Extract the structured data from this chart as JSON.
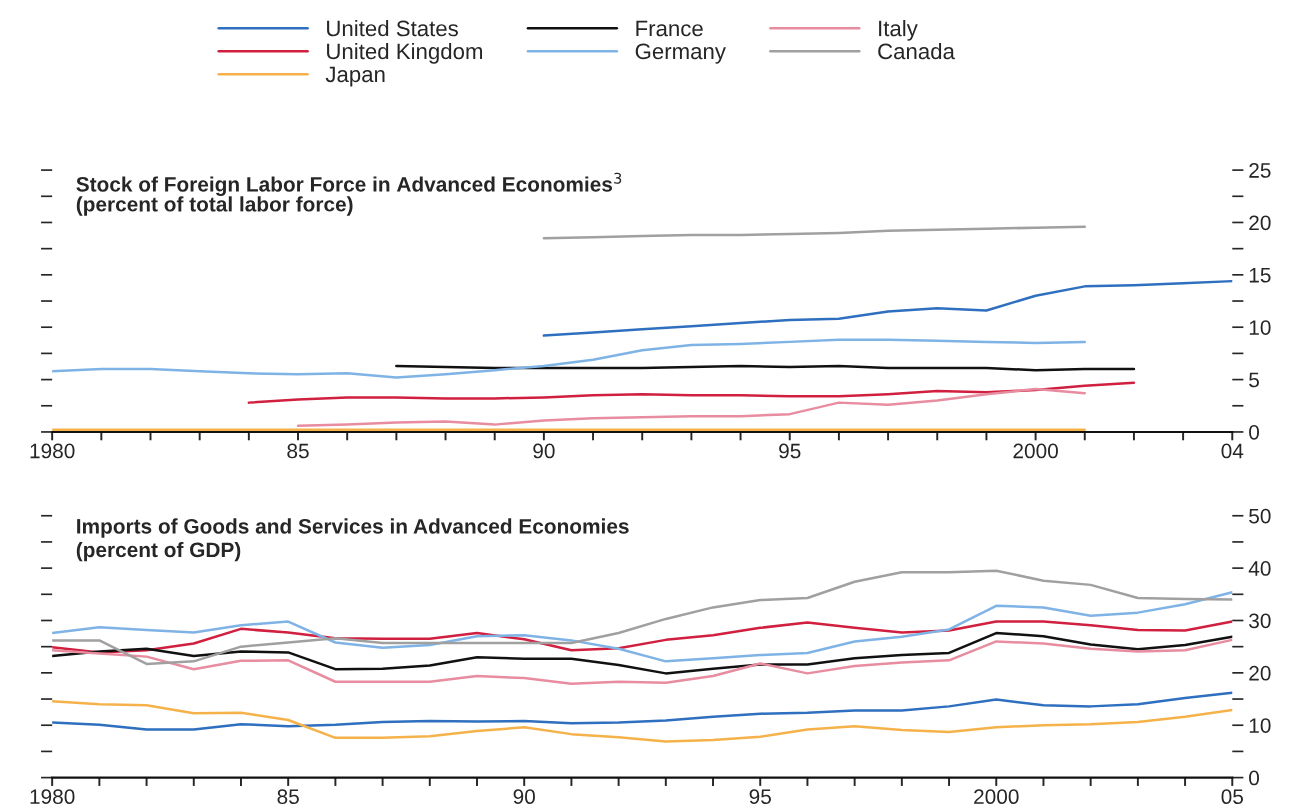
{
  "chart_data": [
    {
      "type": "line",
      "title": "Stock of Foreign Labor Force in Advanced Economies$^{3}$",
      "subtitle": "(percent of total labor force)",
      "legend": "top",
      "grid": false,
      "xlim": [
        1980,
        2004
      ],
      "xticks": [
        {
          "value": 1980,
          "label": "1980"
        },
        {
          "value": 1981,
          "label": null
        },
        {
          "value": 1982,
          "label": null
        },
        {
          "value": 1983,
          "label": null
        },
        {
          "value": 1984,
          "label": null
        },
        {
          "value": 1985,
          "label": "85"
        },
        {
          "value": 1986,
          "label": null
        },
        {
          "value": 1987,
          "label": null
        },
        {
          "value": 1988,
          "label": null
        },
        {
          "value": 1989,
          "label": null
        },
        {
          "value": 1990,
          "label": "90"
        },
        {
          "value": 1991,
          "label": null
        },
        {
          "value": 1992,
          "label": null
        },
        {
          "value": 1993,
          "label": null
        },
        {
          "value": 1994,
          "label": null
        },
        {
          "value": 1995,
          "label": "95"
        },
        {
          "value": 1996,
          "label": null
        },
        {
          "value": 1997,
          "label": null
        },
        {
          "value": 1998,
          "label": null
        },
        {
          "value": 1999,
          "label": null
        },
        {
          "value": 2000,
          "label": "2000"
        },
        {
          "value": 2001,
          "label": null
        },
        {
          "value": 2002,
          "label": null
        },
        {
          "value": 2003,
          "label": null
        },
        {
          "value": 2004,
          "label": "04"
        }
      ],
      "ylim": [
        0,
        25
      ],
      "yticks": [
        0,
        {
          "value": 2.5,
          "label": null
        },
        5,
        {
          "value": 7.5,
          "label": null
        },
        10,
        {
          "value": 12.5,
          "label": null
        },
        15,
        {
          "value": 17.5,
          "label": null
        },
        20,
        {
          "value": 22.5,
          "label": null
        },
        25
      ],
      "series": [
        {
          "name": "United States",
          "color": "#2f6fbf",
          "x": [
            1990,
            1991,
            1992,
            1993,
            1994,
            1995,
            1996,
            1997,
            1998,
            1999,
            2000,
            2001,
            2002,
            2003,
            2004
          ],
          "values": [
            9.2,
            9.5,
            9.8,
            10.1,
            10.4,
            10.7,
            10.8,
            11.5,
            11.8,
            11.6,
            13.0,
            13.9,
            14.0,
            14.2,
            14.4
          ]
        },
        {
          "name": "United Kingdom",
          "color": "#d11f3f",
          "x": [
            1984,
            1985,
            1986,
            1987,
            1988,
            1989,
            1990,
            1991,
            1992,
            1993,
            1994,
            1995,
            1996,
            1997,
            1998,
            1999,
            2000,
            2001,
            2002
          ],
          "values": [
            2.8,
            3.1,
            3.3,
            3.3,
            3.2,
            3.2,
            3.3,
            3.5,
            3.6,
            3.5,
            3.5,
            3.4,
            3.4,
            3.6,
            3.9,
            3.8,
            4.0,
            4.4,
            4.7
          ]
        },
        {
          "name": "Japan",
          "color": "#f5b24a",
          "x": [
            1980,
            1981,
            1982,
            1983,
            1984,
            1985,
            1986,
            1987,
            1988,
            1989,
            1990,
            1991,
            1992,
            1993,
            1994,
            1995,
            1996,
            1997,
            1998,
            1999,
            2000,
            2001
          ],
          "values": [
            0.2,
            0.2,
            0.2,
            0.2,
            0.2,
            0.2,
            0.2,
            0.2,
            0.2,
            0.2,
            0.2,
            0.2,
            0.2,
            0.2,
            0.2,
            0.2,
            0.2,
            0.2,
            0.2,
            0.2,
            0.2,
            0.2
          ]
        },
        {
          "name": "France",
          "color": "#111111",
          "x": [
            1987,
            1988,
            1989,
            1990,
            1991,
            1992,
            1993,
            1994,
            1995,
            1996,
            1997,
            1998,
            1999,
            2000,
            2001,
            2002
          ],
          "values": [
            6.3,
            6.2,
            6.1,
            6.1,
            6.1,
            6.1,
            6.2,
            6.3,
            6.2,
            6.3,
            6.1,
            6.1,
            6.1,
            5.9,
            6.0,
            6.0
          ]
        },
        {
          "name": "Germany",
          "color": "#7fb3e6",
          "x": [
            1980,
            1981,
            1982,
            1983,
            1984,
            1985,
            1986,
            1987,
            1988,
            1989,
            1990,
            1991,
            1992,
            1993,
            1994,
            1995,
            1996,
            1997,
            1998,
            1999,
            2000,
            2001
          ],
          "values": [
            5.8,
            6.0,
            6.0,
            5.8,
            5.6,
            5.5,
            5.6,
            5.2,
            5.5,
            5.9,
            6.3,
            6.9,
            7.8,
            8.3,
            8.4,
            8.6,
            8.8,
            8.8,
            8.7,
            8.6,
            8.5,
            8.6
          ]
        },
        {
          "name": "Italy",
          "color": "#e88ca0",
          "x": [
            1985,
            1986,
            1987,
            1988,
            1989,
            1990,
            1991,
            1992,
            1993,
            1994,
            1995,
            1996,
            1997,
            1998,
            1999,
            2000,
            2001
          ],
          "values": [
            0.6,
            0.7,
            0.9,
            1.0,
            0.7,
            1.1,
            1.3,
            1.4,
            1.5,
            1.5,
            1.7,
            2.8,
            2.6,
            3.0,
            3.6,
            4.1,
            3.7
          ]
        },
        {
          "name": "Canada",
          "color": "#a0a0a0",
          "x": [
            1990,
            1991,
            1992,
            1993,
            1994,
            1995,
            1996,
            1997,
            1998,
            1999,
            2000,
            2001
          ],
          "values": [
            18.5,
            18.6,
            18.7,
            18.8,
            18.8,
            18.9,
            19.0,
            19.2,
            19.3,
            19.4,
            19.5,
            19.6
          ]
        }
      ]
    },
    {
      "type": "line",
      "title": "Imports of Goods and Services in Advanced Economies",
      "subtitle": "(percent of GDP)",
      "grid": false,
      "x": [
        1980,
        1981,
        1982,
        1983,
        1984,
        1985,
        1986,
        1987,
        1988,
        1989,
        1990,
        1991,
        1992,
        1993,
        1994,
        1995,
        1996,
        1997,
        1998,
        1999,
        2000,
        2001,
        2002,
        2003,
        2004,
        2005
      ],
      "xlim": [
        1980,
        2005
      ],
      "xticks": [
        {
          "value": 1980,
          "label": "1980"
        },
        {
          "value": 1981,
          "label": null
        },
        {
          "value": 1982,
          "label": null
        },
        {
          "value": 1983,
          "label": null
        },
        {
          "value": 1984,
          "label": null
        },
        {
          "value": 1985,
          "label": "85"
        },
        {
          "value": 1986,
          "label": null
        },
        {
          "value": 1987,
          "label": null
        },
        {
          "value": 1988,
          "label": null
        },
        {
          "value": 1989,
          "label": null
        },
        {
          "value": 1990,
          "label": "90"
        },
        {
          "value": 1991,
          "label": null
        },
        {
          "value": 1992,
          "label": null
        },
        {
          "value": 1993,
          "label": null
        },
        {
          "value": 1994,
          "label": null
        },
        {
          "value": 1995,
          "label": "95"
        },
        {
          "value": 1996,
          "label": null
        },
        {
          "value": 1997,
          "label": null
        },
        {
          "value": 1998,
          "label": null
        },
        {
          "value": 1999,
          "label": null
        },
        {
          "value": 2000,
          "label": "2000"
        },
        {
          "value": 2001,
          "label": null
        },
        {
          "value": 2002,
          "label": null
        },
        {
          "value": 2003,
          "label": null
        },
        {
          "value": 2004,
          "label": null
        },
        {
          "value": 2005,
          "label": "05"
        }
      ],
      "ylim": [
        0,
        50
      ],
      "yticks": [
        0,
        {
          "value": 5,
          "label": null
        },
        10,
        {
          "value": 15,
          "label": null
        },
        20,
        {
          "value": 25,
          "label": null
        },
        30,
        {
          "value": 35,
          "label": null
        },
        40,
        {
          "value": 45,
          "label": null
        },
        50
      ],
      "series": [
        {
          "color": "#2f6fbf",
          "values": [
            10.5,
            10.1,
            9.2,
            9.2,
            10.2,
            9.8,
            10.1,
            10.6,
            10.8,
            10.7,
            10.8,
            10.4,
            10.5,
            10.9,
            11.6,
            12.2,
            12.4,
            12.8,
            12.8,
            13.6,
            14.9,
            13.8,
            13.6,
            14.0,
            15.2,
            16.2
          ]
        },
        {
          "color": "#d11f3f",
          "values": [
            24.9,
            23.9,
            24.3,
            25.6,
            28.4,
            27.7,
            26.6,
            26.5,
            26.5,
            27.6,
            26.4,
            24.3,
            24.7,
            26.3,
            27.2,
            28.6,
            29.6,
            28.6,
            27.7,
            28.1,
            29.8,
            29.8,
            29.1,
            28.2,
            28.1,
            29.8
          ]
        },
        {
          "color": "#f5b24a",
          "values": [
            14.6,
            14.0,
            13.8,
            12.3,
            12.4,
            11.0,
            7.6,
            7.6,
            7.9,
            8.9,
            9.6,
            8.3,
            7.7,
            6.9,
            7.2,
            7.8,
            9.2,
            9.8,
            9.1,
            8.7,
            9.6,
            10.0,
            10.2,
            10.6,
            11.6,
            12.9
          ]
        },
        {
          "color": "#111111",
          "values": [
            23.2,
            24.1,
            24.6,
            23.2,
            24.1,
            23.9,
            20.7,
            20.8,
            21.4,
            23.0,
            22.7,
            22.7,
            21.5,
            19.9,
            20.8,
            21.6,
            21.6,
            22.8,
            23.4,
            23.8,
            27.6,
            27.0,
            25.4,
            24.5,
            25.3,
            26.9
          ]
        },
        {
          "color": "#7fb3e6",
          "values": [
            27.6,
            28.7,
            28.2,
            27.7,
            29.1,
            29.8,
            25.8,
            24.8,
            25.3,
            27.0,
            27.2,
            26.2,
            24.6,
            22.2,
            22.8,
            23.4,
            23.8,
            26.0,
            26.9,
            28.3,
            32.8,
            32.5,
            30.9,
            31.5,
            33.1,
            35.4
          ]
        },
        {
          "color": "#e88ca0",
          "values": [
            24.3,
            23.7,
            23.1,
            20.7,
            22.3,
            22.4,
            18.3,
            18.3,
            18.3,
            19.4,
            19.0,
            17.9,
            18.3,
            18.1,
            19.4,
            21.8,
            19.9,
            21.3,
            22.0,
            22.4,
            26.0,
            25.6,
            24.6,
            24.1,
            24.3,
            26.3
          ]
        },
        {
          "color": "#a0a0a0",
          "values": [
            26.2,
            26.2,
            21.7,
            22.2,
            25.0,
            25.8,
            26.6,
            25.7,
            25.7,
            25.7,
            25.7,
            25.7,
            27.6,
            30.3,
            32.5,
            33.9,
            34.3,
            37.4,
            39.2,
            39.2,
            39.5,
            37.6,
            36.8,
            34.3,
            34.1,
            34.0
          ]
        }
      ]
    }
  ]
}
